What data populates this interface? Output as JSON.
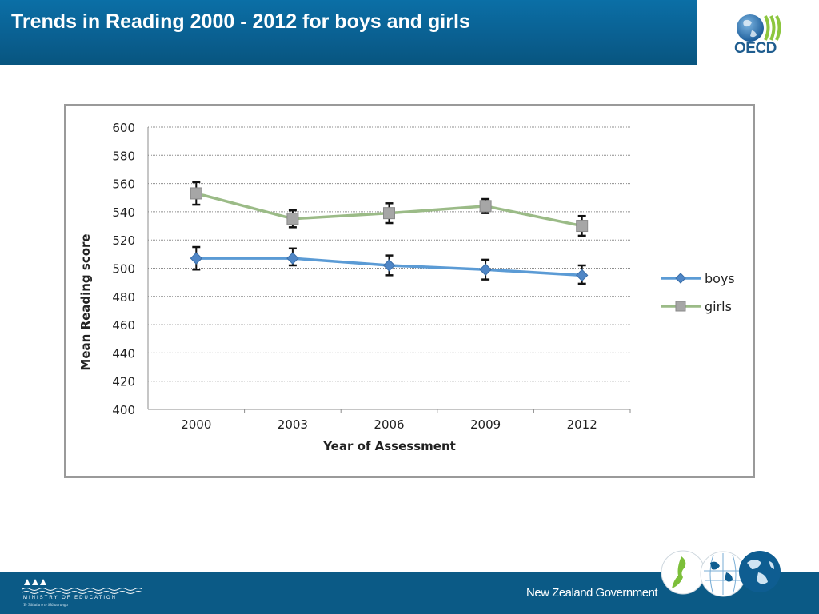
{
  "slide": {
    "title": "Trends in Reading 2000 - 2012 for boys and girls",
    "oecd_logo_text": "OECD",
    "footer_ministry": "MINISTRY OF EDUCATION",
    "footer_ministry_sub": "Te Tāhuhu o te Mātauranga",
    "footer_government": "New Zealand Government"
  },
  "colors": {
    "header_blue": "#0a5f90",
    "boys": "#5b9bd5",
    "girls": "#9bbb87",
    "marker_girls": "#a6a6a6",
    "marker_boys": "#4f86c6"
  },
  "chart_data": {
    "type": "line",
    "title": "",
    "xlabel": "Year of Assessment",
    "ylabel": "Mean Reading score",
    "categories": [
      "2000",
      "2003",
      "2006",
      "2009",
      "2012"
    ],
    "ylim": [
      400,
      600
    ],
    "yticks": [
      400,
      420,
      440,
      460,
      480,
      500,
      520,
      540,
      560,
      580,
      600
    ],
    "grid": true,
    "legend_position": "right",
    "series": [
      {
        "name": "boys",
        "marker": "diamond",
        "values": [
          507,
          507,
          502,
          499,
          495
        ],
        "err_low": [
          499,
          502,
          495,
          492,
          489
        ],
        "err_high": [
          515,
          514,
          509,
          506,
          502
        ]
      },
      {
        "name": "girls",
        "marker": "square",
        "values": [
          553,
          535,
          539,
          544,
          530
        ],
        "err_low": [
          545,
          529,
          532,
          539,
          523
        ],
        "err_high": [
          561,
          541,
          546,
          549,
          537
        ]
      }
    ]
  }
}
